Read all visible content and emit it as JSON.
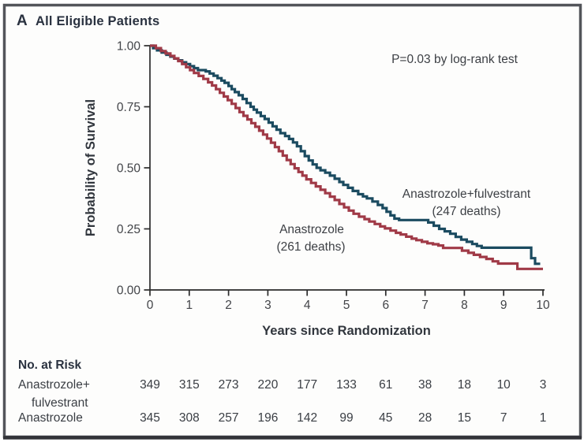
{
  "figure": {
    "panel_letter": "A",
    "panel_title": "All Eligible Patients"
  },
  "colors": {
    "frame": "#53555a",
    "frame_bottom": "#323338",
    "axis": "#2b2b2b",
    "background": "#fdfdfc",
    "series_blue": "#1b4b60",
    "series_red": "#a03a47"
  },
  "chart_data": {
    "type": "line",
    "variant": "kaplan_meier_step",
    "title": "All Eligible Patients",
    "xlabel": "Years since Randomization",
    "ylabel": "Probability of Survival",
    "xlim": [
      0,
      10
    ],
    "ylim": [
      0.0,
      1.0
    ],
    "x_tick_labels": [
      "0",
      "1",
      "2",
      "3",
      "4",
      "5",
      "6",
      "7",
      "8",
      "9",
      "10"
    ],
    "y_tick_labels": [
      "1.00",
      "0.75",
      "0.50",
      "0.25",
      "0.00"
    ],
    "grid": false,
    "legend_position": "inline-annotations",
    "annotation": "P=0.03 by log-rank test",
    "series": [
      {
        "name": "Anastrozole+fulvestrant",
        "deaths": 247,
        "label_line1": "Anastrozole+fulvestrant",
        "label_line2": "(247 deaths)",
        "color": "#1b4b60",
        "points": [
          [
            0,
            1.0
          ],
          [
            0.08,
            0.99
          ],
          [
            0.18,
            0.981
          ],
          [
            0.3,
            0.972
          ],
          [
            0.42,
            0.963
          ],
          [
            0.52,
            0.955
          ],
          [
            0.62,
            0.947
          ],
          [
            0.72,
            0.94
          ],
          [
            0.82,
            0.932
          ],
          [
            0.92,
            0.925
          ],
          [
            1.02,
            0.916
          ],
          [
            1.12,
            0.908
          ],
          [
            1.22,
            0.9
          ],
          [
            1.42,
            0.895
          ],
          [
            1.52,
            0.886
          ],
          [
            1.62,
            0.877
          ],
          [
            1.72,
            0.867
          ],
          [
            1.82,
            0.857
          ],
          [
            1.9,
            0.848
          ],
          [
            2.0,
            0.835
          ],
          [
            2.08,
            0.822
          ],
          [
            2.16,
            0.81
          ],
          [
            2.26,
            0.797
          ],
          [
            2.36,
            0.782
          ],
          [
            2.46,
            0.765
          ],
          [
            2.56,
            0.75
          ],
          [
            2.64,
            0.738
          ],
          [
            2.72,
            0.726
          ],
          [
            2.82,
            0.712
          ],
          [
            2.92,
            0.7
          ],
          [
            3.02,
            0.685
          ],
          [
            3.12,
            0.67
          ],
          [
            3.22,
            0.656
          ],
          [
            3.32,
            0.642
          ],
          [
            3.44,
            0.63
          ],
          [
            3.54,
            0.618
          ],
          [
            3.64,
            0.604
          ],
          [
            3.74,
            0.588
          ],
          [
            3.84,
            0.568
          ],
          [
            3.94,
            0.548
          ],
          [
            4.04,
            0.53
          ],
          [
            4.14,
            0.514
          ],
          [
            4.24,
            0.5
          ],
          [
            4.34,
            0.49
          ],
          [
            4.46,
            0.48
          ],
          [
            4.58,
            0.468
          ],
          [
            4.7,
            0.455
          ],
          [
            4.82,
            0.442
          ],
          [
            4.92,
            0.43
          ],
          [
            5.04,
            0.418
          ],
          [
            5.16,
            0.405
          ],
          [
            5.3,
            0.392
          ],
          [
            5.42,
            0.383
          ],
          [
            5.52,
            0.375
          ],
          [
            5.66,
            0.362
          ],
          [
            5.8,
            0.348
          ],
          [
            5.92,
            0.335
          ],
          [
            6.02,
            0.32
          ],
          [
            6.12,
            0.305
          ],
          [
            6.22,
            0.292
          ],
          [
            6.34,
            0.286
          ],
          [
            7.08,
            0.276
          ],
          [
            7.22,
            0.263
          ],
          [
            7.36,
            0.25
          ],
          [
            7.5,
            0.24
          ],
          [
            7.64,
            0.23
          ],
          [
            7.78,
            0.217
          ],
          [
            7.92,
            0.206
          ],
          [
            8.06,
            0.197
          ],
          [
            8.2,
            0.188
          ],
          [
            8.32,
            0.18
          ],
          [
            8.44,
            0.173
          ],
          [
            9.7,
            0.13
          ],
          [
            9.8,
            0.107
          ],
          [
            9.93,
            0.107
          ]
        ]
      },
      {
        "name": "Anastrozole",
        "deaths": 261,
        "label_line1": "Anastrozole",
        "label_line2": "(261 deaths)",
        "color": "#a03a47",
        "points": [
          [
            0,
            1.0
          ],
          [
            0.15,
            0.99
          ],
          [
            0.28,
            0.978
          ],
          [
            0.4,
            0.968
          ],
          [
            0.52,
            0.958
          ],
          [
            0.62,
            0.948
          ],
          [
            0.72,
            0.937
          ],
          [
            0.82,
            0.925
          ],
          [
            0.92,
            0.912
          ],
          [
            1.02,
            0.9
          ],
          [
            1.12,
            0.888
          ],
          [
            1.24,
            0.876
          ],
          [
            1.36,
            0.864
          ],
          [
            1.48,
            0.85
          ],
          [
            1.58,
            0.837
          ],
          [
            1.68,
            0.822
          ],
          [
            1.78,
            0.807
          ],
          [
            1.88,
            0.792
          ],
          [
            1.98,
            0.777
          ],
          [
            2.08,
            0.762
          ],
          [
            2.18,
            0.745
          ],
          [
            2.28,
            0.728
          ],
          [
            2.38,
            0.713
          ],
          [
            2.48,
            0.698
          ],
          [
            2.58,
            0.683
          ],
          [
            2.68,
            0.668
          ],
          [
            2.78,
            0.652
          ],
          [
            2.88,
            0.636
          ],
          [
            2.98,
            0.62
          ],
          [
            3.08,
            0.603
          ],
          [
            3.18,
            0.585
          ],
          [
            3.28,
            0.568
          ],
          [
            3.38,
            0.55
          ],
          [
            3.48,
            0.532
          ],
          [
            3.58,
            0.515
          ],
          [
            3.68,
            0.498
          ],
          [
            3.78,
            0.483
          ],
          [
            3.88,
            0.468
          ],
          [
            3.98,
            0.453
          ],
          [
            4.1,
            0.438
          ],
          [
            4.22,
            0.424
          ],
          [
            4.34,
            0.41
          ],
          [
            4.46,
            0.396
          ],
          [
            4.58,
            0.382
          ],
          [
            4.7,
            0.368
          ],
          [
            4.82,
            0.352
          ],
          [
            4.94,
            0.338
          ],
          [
            5.06,
            0.325
          ],
          [
            5.18,
            0.312
          ],
          [
            5.32,
            0.3
          ],
          [
            5.46,
            0.29
          ],
          [
            5.58,
            0.28
          ],
          [
            5.72,
            0.27
          ],
          [
            5.86,
            0.26
          ],
          [
            5.98,
            0.252
          ],
          [
            6.12,
            0.243
          ],
          [
            6.26,
            0.234
          ],
          [
            6.38,
            0.227
          ],
          [
            6.52,
            0.218
          ],
          [
            6.66,
            0.21
          ],
          [
            6.78,
            0.204
          ],
          [
            6.92,
            0.197
          ],
          [
            7.06,
            0.191
          ],
          [
            7.2,
            0.187
          ],
          [
            7.34,
            0.182
          ],
          [
            7.46,
            0.172
          ],
          [
            7.94,
            0.161
          ],
          [
            8.1,
            0.152
          ],
          [
            8.24,
            0.144
          ],
          [
            8.4,
            0.135
          ],
          [
            8.56,
            0.127
          ],
          [
            8.72,
            0.117
          ],
          [
            8.86,
            0.108
          ],
          [
            9.35,
            0.086
          ],
          [
            10,
            0.086
          ]
        ]
      }
    ],
    "no_at_risk": {
      "title": "No. at Risk",
      "times": [
        0,
        1,
        2,
        3,
        4,
        5,
        6,
        7,
        8,
        9,
        10
      ],
      "rows": [
        {
          "label_lines": [
            "Anastrozole+",
            "fulvestrant"
          ],
          "values": [
            "349",
            "315",
            "273",
            "220",
            "177",
            "133",
            "61",
            "38",
            "18",
            "10",
            "3"
          ]
        },
        {
          "label_lines": [
            "Anastrozole"
          ],
          "values": [
            "345",
            "308",
            "257",
            "196",
            "142",
            "99",
            "45",
            "28",
            "15",
            "7",
            "1"
          ]
        }
      ]
    }
  }
}
